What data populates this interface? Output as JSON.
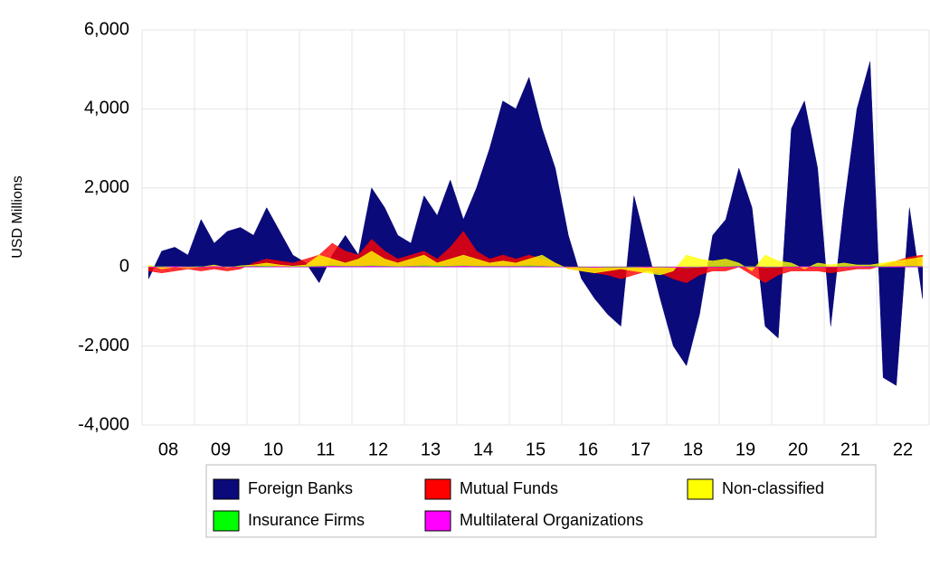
{
  "chart_data": {
    "type": "area",
    "y_label": "USD Millions",
    "categories": [
      null,
      "08",
      null,
      null,
      null,
      "09",
      null,
      null,
      null,
      "10",
      null,
      null,
      null,
      "11",
      null,
      null,
      null,
      "12",
      null,
      null,
      null,
      "13",
      null,
      null,
      null,
      "14",
      null,
      null,
      null,
      "15",
      null,
      null,
      null,
      "16",
      null,
      null,
      null,
      "17",
      null,
      null,
      null,
      "18",
      null,
      null,
      null,
      "19",
      null,
      null,
      null,
      "20",
      null,
      null,
      null,
      "21",
      null,
      null,
      null,
      "22",
      null,
      null
    ],
    "series": [
      {
        "name": "Foreign Banks",
        "color": "#0a0a7a",
        "values": [
          -300,
          400,
          500,
          300,
          1200,
          600,
          900,
          1000,
          800,
          1500,
          900,
          300,
          100,
          -400,
          300,
          800,
          300,
          2000,
          1500,
          800,
          600,
          1800,
          1300,
          2200,
          1200,
          2000,
          3000,
          4200,
          4000,
          4800,
          3500,
          2500,
          800,
          -300,
          -800,
          -1200,
          -1500,
          1800,
          500,
          -800,
          -2000,
          -2500,
          -1200,
          800,
          1200,
          2500,
          1500,
          -1500,
          -1800,
          3500,
          4200,
          2500,
          -1500,
          1500,
          4000,
          5200,
          -2800,
          -3000,
          1500,
          -800
        ]
      },
      {
        "name": "Mutual Funds",
        "color": "#ff0000",
        "values": [
          -100,
          -150,
          -100,
          -50,
          -100,
          -50,
          -100,
          -50,
          100,
          200,
          150,
          100,
          200,
          300,
          600,
          400,
          300,
          700,
          400,
          200,
          300,
          400,
          200,
          500,
          900,
          400,
          200,
          300,
          200,
          300,
          200,
          100,
          -50,
          -100,
          -150,
          -200,
          -300,
          -200,
          -100,
          -150,
          -300,
          -400,
          -200,
          -100,
          -100,
          0,
          -200,
          -400,
          -200,
          -100,
          -100,
          -100,
          -150,
          -100,
          -50,
          -50,
          50,
          150,
          250,
          300
        ]
      },
      {
        "name": "Non-classified",
        "color": "#ffff00",
        "values": [
          50,
          -50,
          0,
          -30,
          0,
          50,
          -20,
          30,
          50,
          100,
          50,
          20,
          50,
          300,
          200,
          100,
          200,
          400,
          200,
          100,
          200,
          300,
          100,
          200,
          300,
          200,
          100,
          150,
          100,
          200,
          300,
          100,
          -50,
          -100,
          -150,
          -100,
          -50,
          -100,
          -150,
          -200,
          -100,
          300,
          200,
          150,
          200,
          100,
          -100,
          300,
          150,
          100,
          -50,
          100,
          50,
          100,
          50,
          50,
          100,
          150,
          200,
          250
        ]
      },
      {
        "name": "Insurance Firms",
        "color": "#00ff00",
        "values": [
          0,
          10,
          10,
          0,
          10,
          10,
          0,
          10,
          20,
          20,
          10,
          10,
          10,
          20,
          30,
          20,
          20,
          30,
          20,
          10,
          20,
          30,
          20,
          20,
          30,
          20,
          20,
          20,
          20,
          30,
          20,
          10,
          0,
          -10,
          -10,
          -10,
          -10,
          -10,
          0,
          -10,
          -10,
          -20,
          -10,
          10,
          10,
          20,
          10,
          -10,
          -10,
          10,
          10,
          10,
          0,
          10,
          10,
          20,
          10,
          10,
          20,
          20
        ]
      },
      {
        "name": "Multilateral Organizations",
        "color": "#ff00ff",
        "values": [
          0,
          0,
          10,
          0,
          0,
          10,
          0,
          0,
          10,
          0,
          10,
          0,
          0,
          10,
          20,
          10,
          10,
          20,
          10,
          0,
          10,
          10,
          0,
          10,
          20,
          10,
          10,
          10,
          10,
          10,
          10,
          0,
          0,
          0,
          -10,
          0,
          0,
          0,
          -10,
          0,
          -10,
          -10,
          0,
          0,
          0,
          10,
          0,
          0,
          0,
          0,
          10,
          0,
          0,
          0,
          10,
          10,
          0,
          10,
          10,
          10
        ]
      }
    ],
    "ylim": [
      -4000,
      6000
    ],
    "yticks": [
      {
        "value": -4000,
        "label": "-4,000"
      },
      {
        "value": -2000,
        "label": "-2,000"
      },
      0,
      {
        "value": 2000,
        "label": "2,000"
      },
      {
        "value": 4000,
        "label": "4,000"
      },
      {
        "value": 6000,
        "label": "6,000"
      }
    ],
    "grid": true,
    "legend": "bottom"
  }
}
